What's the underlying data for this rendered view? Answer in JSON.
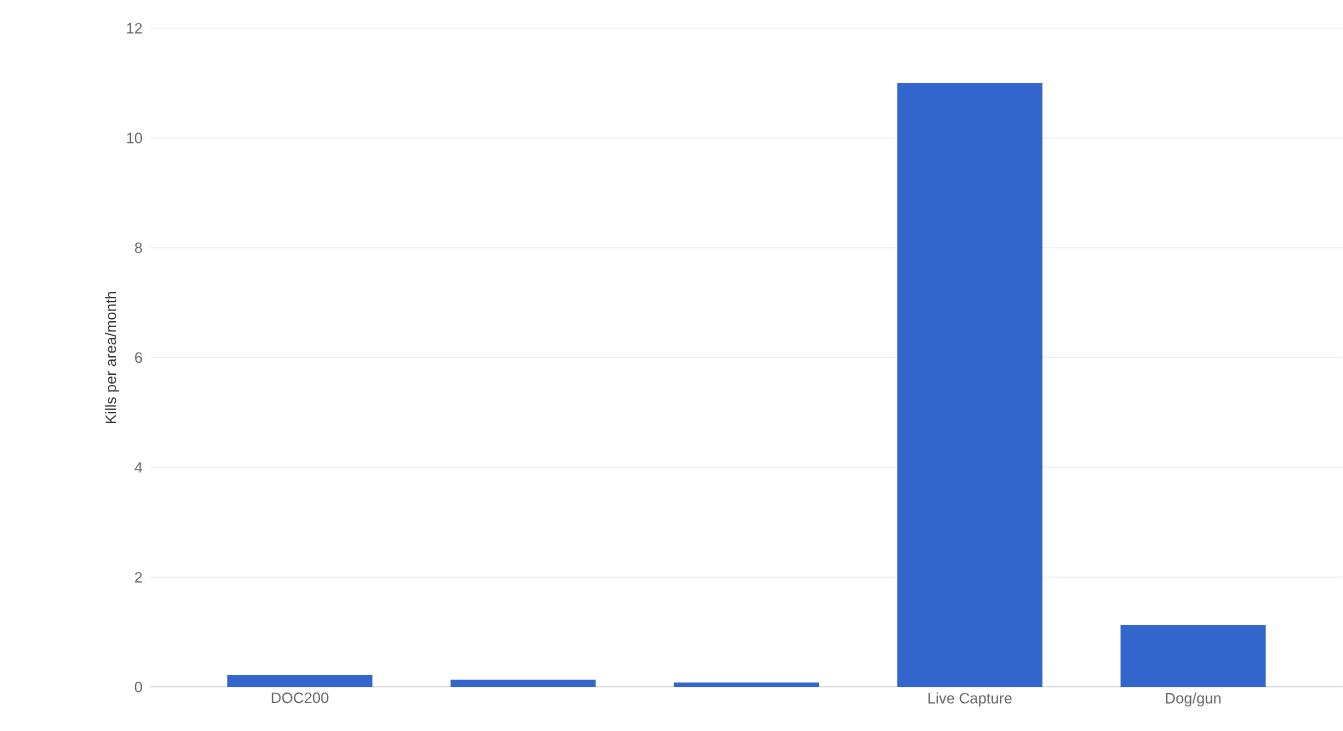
{
  "chart_data": {
    "type": "bar",
    "ylabel": "Kills per area/month",
    "categories": [
      "DOC200",
      null,
      null,
      "Live Capture",
      "Dog/gun"
    ],
    "values": [
      0.22,
      0.13,
      0.08,
      11,
      1.13
    ],
    "color": "#3366cc",
    "ylim": [
      0,
      12
    ],
    "yticks": [
      0,
      2,
      4,
      6,
      8,
      10,
      12
    ],
    "grid": "y"
  }
}
